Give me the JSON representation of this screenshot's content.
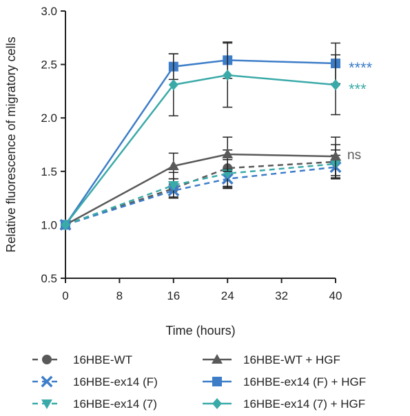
{
  "chart_data": {
    "type": "line",
    "title": "",
    "xlabel": "Time (hours)",
    "ylabel": "Relative fluorescence of migratory cells",
    "xlim": [
      0,
      40
    ],
    "ylim": [
      0.5,
      3.0
    ],
    "x_ticks": [
      "0",
      "8",
      "16",
      "24",
      "32",
      "40"
    ],
    "y_ticks": [
      "0.5",
      "1.0",
      "1.5",
      "2.0",
      "2.5",
      "3.0"
    ],
    "legend_position": "bottom",
    "grid": false,
    "x": [
      0,
      16,
      24,
      40
    ],
    "series": [
      {
        "name": "16HBE-WT",
        "values": [
          1.0,
          1.34,
          1.53,
          1.59
        ],
        "errors": [
          0,
          0.09,
          0.17,
          0.16
        ],
        "color": "#595959",
        "marker": "circle",
        "dashed": true
      },
      {
        "name": "16HBE-WT + HGF",
        "values": [
          1.0,
          1.55,
          1.66,
          1.64
        ],
        "errors": [
          0,
          0.12,
          0.16,
          0.18
        ],
        "color": "#595959",
        "marker": "triangle-up",
        "dashed": false
      },
      {
        "name": "16HBE-ex14 (F)",
        "values": [
          1.0,
          1.32,
          1.43,
          1.54
        ],
        "errors": [
          0,
          0.06,
          0.09,
          0.11
        ],
        "color": "#3d7dc8",
        "marker": "x",
        "dashed": true
      },
      {
        "name": "16HBE-ex14 (F) + HGF",
        "values": [
          1.0,
          2.48,
          2.54,
          2.51
        ],
        "errors": [
          0,
          0.12,
          0.17,
          0.19
        ],
        "color": "#3d7dc8",
        "marker": "square",
        "dashed": false
      },
      {
        "name": "16HBE-ex14 (7)",
        "values": [
          1.0,
          1.37,
          1.48,
          1.57
        ],
        "errors": [
          0,
          0.12,
          0.13,
          0.13
        ],
        "color": "#3aaaa8",
        "marker": "triangle-down",
        "dashed": true
      },
      {
        "name": "16HBE-ex14 (7) + HGF",
        "values": [
          1.0,
          2.31,
          2.4,
          2.31
        ],
        "errors": [
          0,
          0.29,
          0.3,
          0.28
        ],
        "color": "#3aaaa8",
        "marker": "diamond",
        "dashed": false
      }
    ],
    "annotations": [
      {
        "text": "****",
        "color": "#3d7dc8",
        "series": "16HBE-ex14 (F) + HGF"
      },
      {
        "text": "***",
        "color": "#3aaaa8",
        "series": "16HBE-ex14 (7) + HGF"
      },
      {
        "text": "ns",
        "color": "#595959",
        "series": "16HBE-WT + HGF"
      }
    ],
    "legend_order": [
      "16HBE-WT",
      "16HBE-WT + HGF",
      "16HBE-ex14 (F)",
      "16HBE-ex14 (F) + HGF",
      "16HBE-ex14 (7)",
      "16HBE-ex14 (7) + HGF"
    ]
  }
}
